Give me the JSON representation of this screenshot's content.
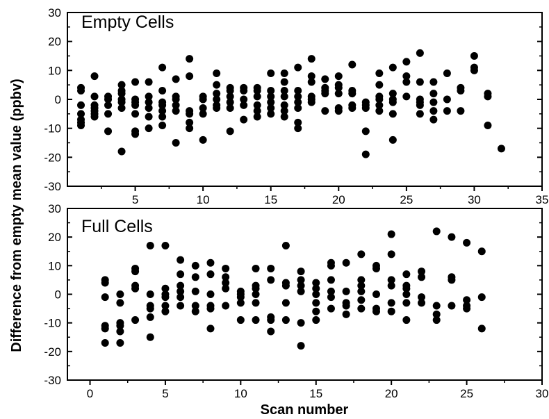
{
  "chart_data": [
    {
      "type": "scatter",
      "title": "Empty Cells",
      "xlim": [
        0,
        35
      ],
      "ylim": [
        -30,
        30
      ],
      "x_ticks": [
        5,
        10,
        15,
        20,
        25,
        30,
        35
      ],
      "y_ticks": [
        -30,
        -20,
        -10,
        0,
        10,
        20,
        30
      ],
      "grid": false,
      "points": [
        [
          1,
          4
        ],
        [
          1,
          3
        ],
        [
          1,
          -2
        ],
        [
          1,
          -5
        ],
        [
          1,
          -7
        ],
        [
          1,
          -8
        ],
        [
          1,
          -9
        ],
        [
          2,
          8
        ],
        [
          2,
          1
        ],
        [
          2,
          -2
        ],
        [
          2,
          -3
        ],
        [
          2,
          -4
        ],
        [
          2,
          -5
        ],
        [
          2,
          -6
        ],
        [
          3,
          1
        ],
        [
          3,
          0
        ],
        [
          3,
          -2
        ],
        [
          3,
          -5
        ],
        [
          3,
          -11
        ],
        [
          4,
          5
        ],
        [
          4,
          3
        ],
        [
          4,
          2
        ],
        [
          4,
          0
        ],
        [
          4,
          -1
        ],
        [
          4,
          -3
        ],
        [
          4,
          -18
        ],
        [
          5,
          6
        ],
        [
          5,
          0
        ],
        [
          5,
          -1
        ],
        [
          5,
          -2
        ],
        [
          5,
          -5
        ],
        [
          5,
          -11
        ],
        [
          5,
          -12
        ],
        [
          6,
          6
        ],
        [
          6,
          1
        ],
        [
          6,
          -1
        ],
        [
          6,
          -3
        ],
        [
          6,
          -6
        ],
        [
          6,
          -10
        ],
        [
          7,
          11
        ],
        [
          7,
          3
        ],
        [
          7,
          -1
        ],
        [
          7,
          -2
        ],
        [
          7,
          -4
        ],
        [
          7,
          -6
        ],
        [
          7,
          -9
        ],
        [
          8,
          7
        ],
        [
          8,
          1
        ],
        [
          8,
          0
        ],
        [
          8,
          -2
        ],
        [
          8,
          -4
        ],
        [
          8,
          -15
        ],
        [
          9,
          14
        ],
        [
          9,
          8
        ],
        [
          9,
          -4
        ],
        [
          9,
          -5
        ],
        [
          9,
          -8
        ],
        [
          9,
          -10
        ],
        [
          10,
          1
        ],
        [
          10,
          0
        ],
        [
          10,
          -3
        ],
        [
          10,
          -5
        ],
        [
          10,
          -14
        ],
        [
          11,
          9
        ],
        [
          11,
          5
        ],
        [
          11,
          2
        ],
        [
          11,
          0
        ],
        [
          11,
          -2
        ],
        [
          11,
          -3
        ],
        [
          12,
          4
        ],
        [
          12,
          3
        ],
        [
          12,
          1
        ],
        [
          12,
          -1
        ],
        [
          12,
          -3
        ],
        [
          12,
          -11
        ],
        [
          13,
          4
        ],
        [
          13,
          3
        ],
        [
          13,
          0
        ],
        [
          13,
          -2
        ],
        [
          13,
          -7
        ],
        [
          14,
          4
        ],
        [
          14,
          3
        ],
        [
          14,
          1
        ],
        [
          14,
          -2
        ],
        [
          14,
          -4
        ],
        [
          14,
          -6
        ],
        [
          15,
          9
        ],
        [
          15,
          3
        ],
        [
          15,
          1
        ],
        [
          15,
          -1
        ],
        [
          15,
          -3
        ],
        [
          15,
          -5
        ],
        [
          16,
          9
        ],
        [
          16,
          6
        ],
        [
          16,
          3
        ],
        [
          16,
          1
        ],
        [
          16,
          -2
        ],
        [
          16,
          -4
        ],
        [
          16,
          -6
        ],
        [
          17,
          11
        ],
        [
          17,
          3
        ],
        [
          17,
          1
        ],
        [
          17,
          -1
        ],
        [
          17,
          -3
        ],
        [
          17,
          -8
        ],
        [
          17,
          -10
        ],
        [
          18,
          14
        ],
        [
          18,
          8
        ],
        [
          18,
          6
        ],
        [
          18,
          1
        ],
        [
          18,
          0
        ],
        [
          18,
          -1
        ],
        [
          19,
          7
        ],
        [
          19,
          4
        ],
        [
          19,
          3
        ],
        [
          19,
          2
        ],
        [
          19,
          -4
        ],
        [
          20,
          8
        ],
        [
          20,
          5
        ],
        [
          20,
          4
        ],
        [
          20,
          2
        ],
        [
          20,
          -3
        ],
        [
          20,
          -4
        ],
        [
          21,
          12
        ],
        [
          21,
          3
        ],
        [
          21,
          2
        ],
        [
          21,
          -2
        ],
        [
          21,
          -3
        ],
        [
          22,
          -1
        ],
        [
          22,
          -2
        ],
        [
          22,
          -3
        ],
        [
          22,
          -11
        ],
        [
          22,
          -19
        ],
        [
          23,
          9
        ],
        [
          23,
          5
        ],
        [
          23,
          1
        ],
        [
          23,
          0
        ],
        [
          23,
          -2
        ],
        [
          23,
          -4
        ],
        [
          24,
          11
        ],
        [
          24,
          2
        ],
        [
          24,
          0
        ],
        [
          24,
          -1
        ],
        [
          24,
          -5
        ],
        [
          24,
          -14
        ],
        [
          25,
          13
        ],
        [
          25,
          8
        ],
        [
          25,
          6
        ],
        [
          25,
          1
        ],
        [
          26,
          16
        ],
        [
          26,
          6
        ],
        [
          26,
          0
        ],
        [
          26,
          -1
        ],
        [
          26,
          -2
        ],
        [
          26,
          -5
        ],
        [
          27,
          6
        ],
        [
          27,
          2
        ],
        [
          27,
          -1
        ],
        [
          27,
          -4
        ],
        [
          27,
          -7
        ],
        [
          28,
          9
        ],
        [
          28,
          0
        ],
        [
          28,
          -4
        ],
        [
          29,
          4
        ],
        [
          29,
          3
        ],
        [
          29,
          -4
        ],
        [
          30,
          15
        ],
        [
          30,
          11
        ],
        [
          30,
          10
        ],
        [
          31,
          2
        ],
        [
          31,
          1
        ],
        [
          31,
          -9
        ],
        [
          32,
          -17
        ]
      ]
    },
    {
      "type": "scatter",
      "title": "Full Cells",
      "xlabel": "Scan number",
      "xlim": [
        -1.5,
        30
      ],
      "ylim": [
        -30,
        30
      ],
      "x_ticks": [
        0,
        5,
        10,
        15,
        20,
        25,
        30
      ],
      "y_ticks": [
        -30,
        -20,
        -10,
        0,
        10,
        20,
        30
      ],
      "grid": false,
      "points": [
        [
          1,
          5
        ],
        [
          1,
          4
        ],
        [
          1,
          -1
        ],
        [
          1,
          -11
        ],
        [
          1,
          -12
        ],
        [
          1,
          -17
        ],
        [
          2,
          0
        ],
        [
          2,
          -3
        ],
        [
          2,
          -10
        ],
        [
          2,
          -11
        ],
        [
          2,
          -13
        ],
        [
          2,
          -17
        ],
        [
          3,
          9
        ],
        [
          3,
          8
        ],
        [
          3,
          3
        ],
        [
          3,
          2
        ],
        [
          3,
          -9
        ],
        [
          4,
          17
        ],
        [
          4,
          0
        ],
        [
          4,
          -4
        ],
        [
          4,
          -5
        ],
        [
          4,
          -8
        ],
        [
          4,
          -15
        ],
        [
          5,
          17
        ],
        [
          5,
          2
        ],
        [
          5,
          0
        ],
        [
          5,
          -1
        ],
        [
          5,
          -4
        ],
        [
          5,
          -6
        ],
        [
          6,
          12
        ],
        [
          6,
          7
        ],
        [
          6,
          3
        ],
        [
          6,
          1
        ],
        [
          6,
          -1
        ],
        [
          6,
          -4
        ],
        [
          7,
          10
        ],
        [
          7,
          6
        ],
        [
          7,
          1
        ],
        [
          7,
          -4
        ],
        [
          7,
          -6
        ],
        [
          8,
          11
        ],
        [
          8,
          7
        ],
        [
          8,
          0
        ],
        [
          8,
          -4
        ],
        [
          8,
          -5
        ],
        [
          8,
          -12
        ],
        [
          9,
          9
        ],
        [
          9,
          6
        ],
        [
          9,
          4
        ],
        [
          9,
          2
        ],
        [
          9,
          -4
        ],
        [
          10,
          1
        ],
        [
          10,
          0
        ],
        [
          10,
          -1
        ],
        [
          10,
          -3
        ],
        [
          10,
          -9
        ],
        [
          11,
          9
        ],
        [
          11,
          3
        ],
        [
          11,
          2
        ],
        [
          11,
          0
        ],
        [
          11,
          -3
        ],
        [
          11,
          -9
        ],
        [
          12,
          9
        ],
        [
          12,
          5
        ],
        [
          12,
          -8
        ],
        [
          12,
          -9
        ],
        [
          12,
          -13
        ],
        [
          13,
          17
        ],
        [
          13,
          4
        ],
        [
          13,
          3
        ],
        [
          13,
          -3
        ],
        [
          13,
          -9
        ],
        [
          14,
          8
        ],
        [
          14,
          5
        ],
        [
          14,
          3
        ],
        [
          14,
          1
        ],
        [
          14,
          -10
        ],
        [
          14,
          -18
        ],
        [
          15,
          4
        ],
        [
          15,
          2
        ],
        [
          15,
          0
        ],
        [
          15,
          -3
        ],
        [
          15,
          -6
        ],
        [
          15,
          -9
        ],
        [
          16,
          11
        ],
        [
          16,
          10
        ],
        [
          16,
          5
        ],
        [
          16,
          1
        ],
        [
          16,
          -1
        ],
        [
          16,
          -5
        ],
        [
          17,
          11
        ],
        [
          17,
          1
        ],
        [
          17,
          -3
        ],
        [
          17,
          -4
        ],
        [
          17,
          -7
        ],
        [
          18,
          14
        ],
        [
          18,
          5
        ],
        [
          18,
          3
        ],
        [
          18,
          1
        ],
        [
          18,
          -2
        ],
        [
          18,
          -5
        ],
        [
          19,
          10
        ],
        [
          19,
          9
        ],
        [
          19,
          0
        ],
        [
          19,
          -5
        ],
        [
          19,
          -6
        ],
        [
          20,
          21
        ],
        [
          20,
          14
        ],
        [
          20,
          5
        ],
        [
          20,
          3
        ],
        [
          20,
          -3
        ],
        [
          20,
          -6
        ],
        [
          21,
          7
        ],
        [
          21,
          3
        ],
        [
          21,
          2
        ],
        [
          21,
          0
        ],
        [
          21,
          -3
        ],
        [
          21,
          -9
        ],
        [
          22,
          8
        ],
        [
          22,
          6
        ],
        [
          22,
          -1
        ],
        [
          22,
          -3
        ],
        [
          23,
          22
        ],
        [
          23,
          -4
        ],
        [
          23,
          -7
        ],
        [
          23,
          -9
        ],
        [
          24,
          20
        ],
        [
          24,
          6
        ],
        [
          24,
          5
        ],
        [
          24,
          -4
        ],
        [
          25,
          18
        ],
        [
          25,
          -2
        ],
        [
          25,
          -4
        ],
        [
          25,
          -5
        ],
        [
          26,
          15
        ],
        [
          26,
          -1
        ],
        [
          26,
          -12
        ]
      ]
    }
  ],
  "figure": {
    "ylabel": "Difference from empty mean value (ppbv)"
  }
}
